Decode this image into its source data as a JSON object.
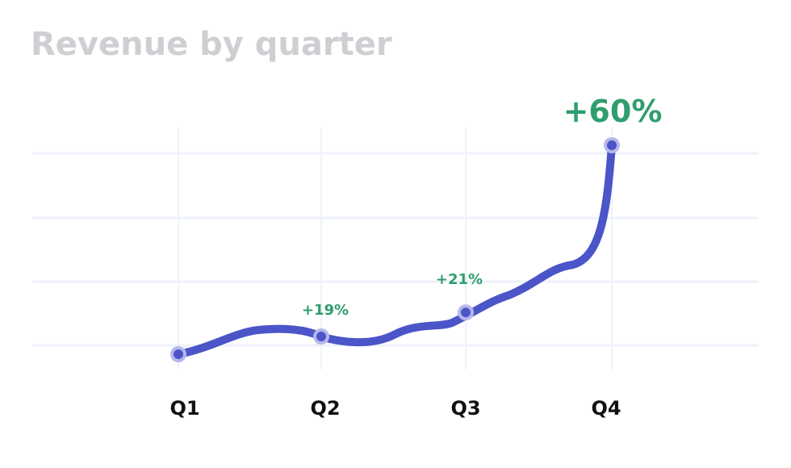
{
  "chart_data": {
    "type": "line",
    "title": "Revenue by quarter",
    "categories": [
      "Q1",
      "Q2",
      "Q3",
      "Q4"
    ],
    "values": [
      0,
      0.28,
      0.66,
      3.3
    ],
    "annotations": [
      {
        "category": "Q2",
        "text": "+19%"
      },
      {
        "category": "Q3",
        "text": "+21%"
      },
      {
        "category": "Q4",
        "text": "+60%"
      }
    ],
    "ylim": [
      -0.2,
      3.6
    ],
    "grid": true,
    "line_color": "#4b55c8",
    "marker_color": "#b4b8ec",
    "annotation_color": "#2f9e6e",
    "gridline_color": "#eef2fa"
  }
}
